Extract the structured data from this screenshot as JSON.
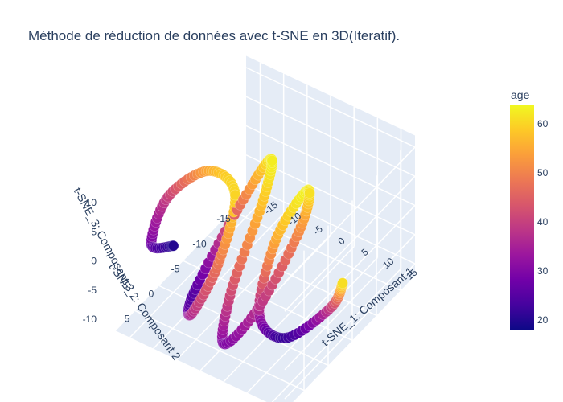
{
  "title": "Méthode de réduction de données avec t-SNE en 3D(Iteratif).",
  "colors": {
    "scene_bg": "#e5ecf6",
    "grid": "#ffffff",
    "text": "#2a3f5f",
    "colorscale": [
      "#0d0887",
      "#46039f",
      "#7201a8",
      "#9c179e",
      "#bd3786",
      "#d8576b",
      "#ed7953",
      "#fb9f3a",
      "#fdca26",
      "#f0f921"
    ]
  },
  "chart_data": {
    "type": "scatter3d",
    "title": "Méthode de réduction de données avec t-SNE en 3D(Iteratif).",
    "axes": {
      "x": {
        "label": "t-SNE_1: Composant 1",
        "range": [
          -18,
          18
        ],
        "ticks": [
          -15,
          -10,
          -5,
          0,
          5,
          10,
          15
        ]
      },
      "y": {
        "label": "t-SNE_2: Composant 2",
        "range": [
          -18,
          9
        ],
        "ticks": [
          -15,
          -10,
          -5,
          0,
          5
        ]
      },
      "z": {
        "label": "t-SNE_3: Composant 3",
        "range": [
          -12,
          12
        ],
        "ticks": [
          -10,
          -5,
          0,
          5,
          10
        ]
      }
    },
    "colorbar": {
      "title": "age",
      "range": [
        18,
        64
      ],
      "ticks": [
        20,
        30,
        40,
        50,
        60
      ]
    },
    "series": [
      {
        "description_of_shape": "helical coil of points colored by age",
        "x": [
          -15,
          -13.5,
          -12,
          -10.5,
          -9,
          -7.5,
          -6,
          -4.5,
          -3,
          -1.5,
          0,
          1.5,
          3,
          4.5,
          6,
          7.5,
          9,
          10.5,
          12,
          13.5,
          15
        ],
        "y": [
          0,
          6,
          4,
          -3,
          -7,
          -2,
          5,
          6,
          -1,
          -7,
          -4,
          4,
          7,
          1,
          -6,
          -6,
          2,
          7,
          3,
          -5,
          -6
        ],
        "z": [
          -4,
          2,
          9,
          8,
          1,
          -6,
          -8,
          -3,
          5,
          10,
          6,
          -2,
          -8,
          -6,
          2,
          9,
          8,
          0,
          -7,
          -8,
          -4
        ],
        "age": [
          20,
          28,
          40,
          55,
          60,
          48,
          36,
          25,
          45,
          62,
          58,
          42,
          30,
          38,
          52,
          63,
          55,
          35,
          22,
          40,
          62
        ]
      }
    ]
  }
}
